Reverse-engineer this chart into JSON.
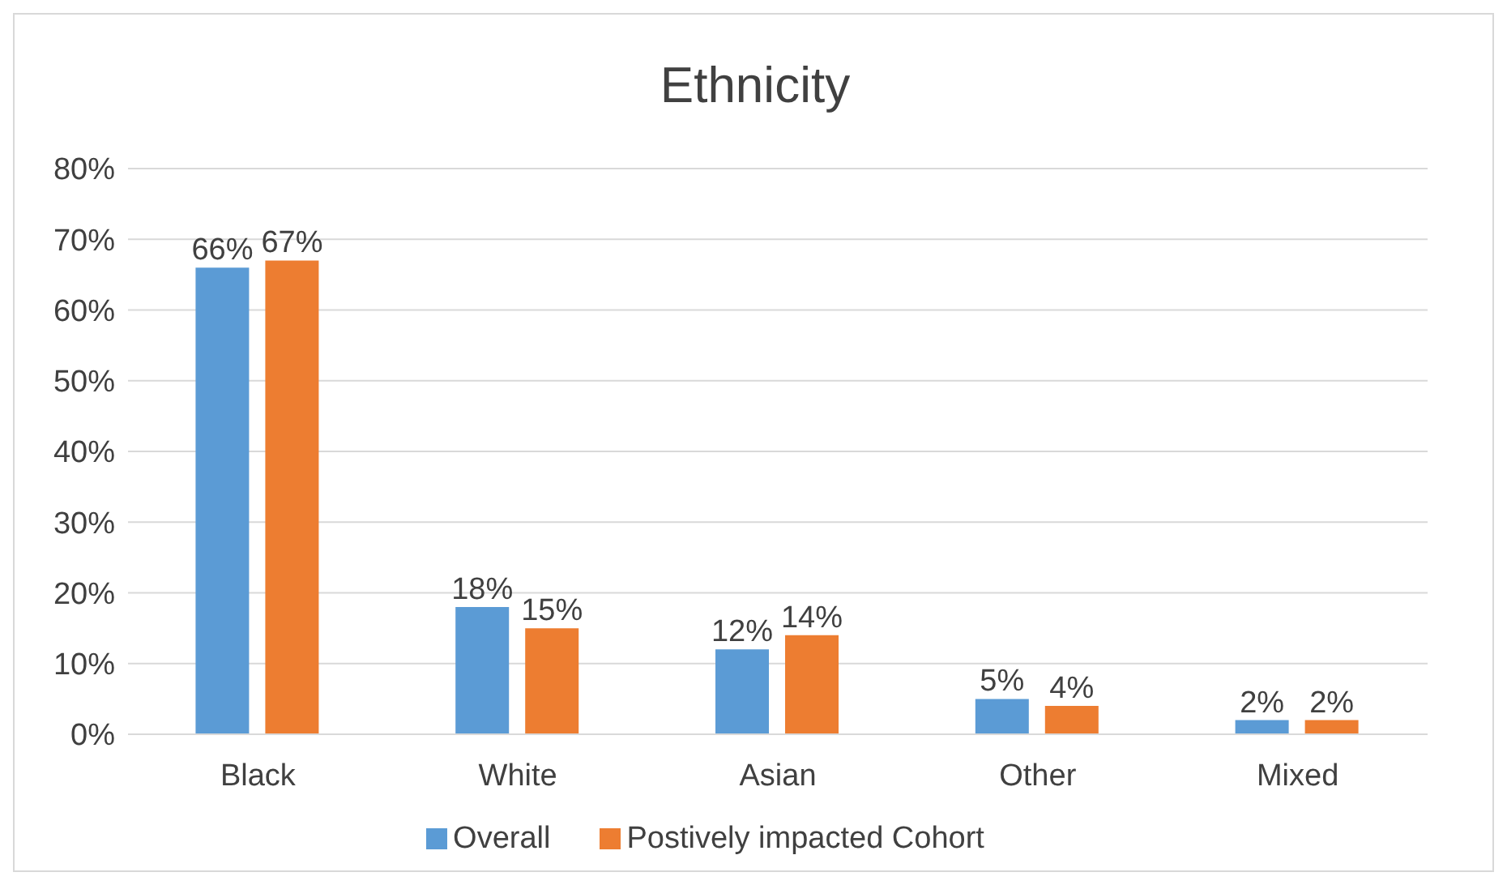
{
  "chart_data": {
    "type": "bar",
    "title": "Ethnicity",
    "categories": [
      "Black",
      "White",
      "Asian",
      "Other",
      "Mixed"
    ],
    "series": [
      {
        "name": "Overall",
        "color": "#5b9bd5",
        "values": [
          66,
          18,
          12,
          5,
          2
        ],
        "value_labels": [
          "66%",
          "18%",
          "12%",
          "5%",
          "2%"
        ]
      },
      {
        "name": "Postively impacted Cohort",
        "color": "#ed7d31",
        "values": [
          67,
          15,
          14,
          4,
          2
        ],
        "value_labels": [
          "67%",
          "15%",
          "14%",
          "4%",
          "2%"
        ]
      }
    ],
    "ylim": [
      0,
      80
    ],
    "yticks": [
      {
        "value": 0,
        "label": "0%"
      },
      {
        "value": 10,
        "label": "10%"
      },
      {
        "value": 20,
        "label": "20%"
      },
      {
        "value": 30,
        "label": "30%"
      },
      {
        "value": 40,
        "label": "40%"
      },
      {
        "value": 50,
        "label": "50%"
      },
      {
        "value": 60,
        "label": "60%"
      },
      {
        "value": 70,
        "label": "70%"
      },
      {
        "value": 80,
        "label": "80%"
      }
    ],
    "grid": "y",
    "legend": "bottom"
  }
}
